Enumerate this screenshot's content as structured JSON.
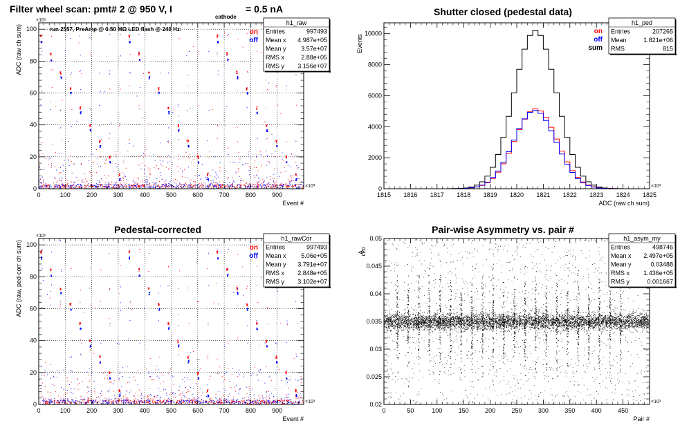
{
  "colors": {
    "on": "#ff0000",
    "off": "#0000ff",
    "sum": "#000000",
    "axis": "#000000"
  },
  "chart_data": [
    {
      "id": "raw",
      "type": "scatter",
      "title": "Filter wheel scan: pmt#   2 @   950 V, I",
      "title_sub": "cathode",
      "title_tail": "  = 0.5 nA",
      "annotation": "run 2557, PreAmp @ 0.50 MΩ   LED flash @  240 Hz:",
      "xlabel": "Event #",
      "ylabel": "ADC (raw ch sum)",
      "x_exponent": "×10³",
      "y_exponent": "×10⁶",
      "xlim": [
        0,
        1000
      ],
      "ylim": [
        0,
        104
      ],
      "xticks": [
        0,
        100,
        200,
        300,
        400,
        500,
        600,
        700,
        800,
        900
      ],
      "yticks": [
        0,
        20,
        40,
        60,
        80,
        100
      ],
      "legend": [
        {
          "name": "on",
          "color": "#ff0000"
        },
        {
          "name": "off",
          "color": "#0000ff"
        }
      ],
      "stats": {
        "name": "h1_raw",
        "rows": [
          {
            "k": "Entries",
            "v": "997493"
          },
          {
            "k": "Mean x",
            "v": "4.987e+05"
          },
          {
            "k": "Mean y",
            "v": "3.57e+07"
          },
          {
            "k": "RMS x",
            "v": "2.88e+05"
          },
          {
            "k": "RMS y",
            "v": "3.156e+07"
          }
        ]
      },
      "levels_on": [
        96,
        85,
        73,
        63,
        51,
        40,
        30,
        20,
        9
      ],
      "levels_off": [
        92,
        81,
        70,
        60,
        48,
        37,
        27,
        17,
        6
      ],
      "period": 37,
      "x_start": 5
    },
    {
      "id": "ped",
      "type": "line",
      "title": "Shutter closed (pedestal data)",
      "xlabel": "ADC (raw ch sum)",
      "ylabel": "Events",
      "x_exponent": "×10³",
      "xlim": [
        1815,
        1825
      ],
      "ylim": [
        0,
        10700
      ],
      "xticks": [
        1815,
        1816,
        1817,
        1818,
        1819,
        1820,
        1821,
        1822,
        1823,
        1824,
        1825
      ],
      "yticks": [
        0,
        2000,
        4000,
        6000,
        8000,
        10000
      ],
      "legend": [
        {
          "name": "on",
          "color": "#ff0000"
        },
        {
          "name": "off",
          "color": "#0000ff"
        },
        {
          "name": "sum",
          "color": "#000000"
        }
      ],
      "stats": {
        "name": "h1_ped",
        "rows": [
          {
            "k": "Entries",
            "v": "207265"
          },
          {
            "k": "Mean",
            "v": "1.821e+06"
          },
          {
            "k": "RMS",
            "v": "815"
          }
        ]
      },
      "series": [
        {
          "name": "sum",
          "peak": 10200,
          "mean": 1820.7,
          "sigma": 0.8
        },
        {
          "name": "on",
          "peak": 5150,
          "mean": 1820.72,
          "sigma": 0.8
        },
        {
          "name": "off",
          "peak": 5050,
          "mean": 1820.68,
          "sigma": 0.8
        }
      ]
    },
    {
      "id": "rawCor",
      "type": "scatter",
      "title": "Pedestal-corrected",
      "xlabel": "Event #",
      "ylabel": "ADC (raw, ped-corr ch sum)",
      "x_exponent": "×10³",
      "y_exponent": "×10⁶",
      "xlim": [
        0,
        1000
      ],
      "ylim": [
        0,
        104
      ],
      "xticks": [
        0,
        100,
        200,
        300,
        400,
        500,
        600,
        700,
        800,
        900
      ],
      "yticks": [
        0,
        20,
        40,
        60,
        80,
        100
      ],
      "legend": [
        {
          "name": "on",
          "color": "#ff0000"
        },
        {
          "name": "off",
          "color": "#0000ff"
        }
      ],
      "stats": {
        "name": "h1_rawCor",
        "rows": [
          {
            "k": "Entries",
            "v": "997493"
          },
          {
            "k": "Mean x",
            "v": "5.06e+05"
          },
          {
            "k": "Mean y",
            "v": "3.791e+07"
          },
          {
            "k": "RMS x",
            "v": "2.848e+05"
          },
          {
            "k": "RMS y",
            "v": "3.102e+07"
          }
        ]
      },
      "levels_on": [
        96,
        85,
        73,
        63,
        51,
        40,
        30,
        20,
        9
      ],
      "levels_off": [
        92,
        81,
        70,
        60,
        48,
        37,
        27,
        17,
        6
      ],
      "period": 37,
      "x_start": 5
    },
    {
      "id": "asym",
      "type": "scatter",
      "title": "Pair-wise Asymmetry vs. pair #",
      "xlabel": "Pair #",
      "ylabel": "A",
      "ylabel_sub": "LED",
      "x_exponent": "×10³",
      "xlim": [
        0,
        500
      ],
      "ylim": [
        0.02,
        0.05
      ],
      "xticks": [
        0,
        50,
        100,
        150,
        200,
        250,
        300,
        350,
        400,
        450
      ],
      "yticks": [
        0.02,
        0.025,
        0.03,
        0.035,
        0.04,
        0.045,
        0.05
      ],
      "stats": {
        "name": "h1_asym_my",
        "rows": [
          {
            "k": "Entries",
            "v": "498746"
          },
          {
            "k": "Mean x",
            "v": "2.497e+05"
          },
          {
            "k": "Mean y",
            "v": "0.03488"
          },
          {
            "k": "RMS x",
            "v": "1.436e+05"
          },
          {
            "k": "RMS y",
            "v": "0.001667"
          }
        ]
      },
      "band_center": 0.035,
      "band_halfwidth": 0.0012,
      "spike_positions": [
        25,
        45,
        65,
        85,
        105,
        125,
        145,
        165,
        185,
        205,
        225,
        245,
        265,
        285,
        305,
        325,
        345,
        365,
        385,
        405,
        425,
        445
      ]
    }
  ]
}
